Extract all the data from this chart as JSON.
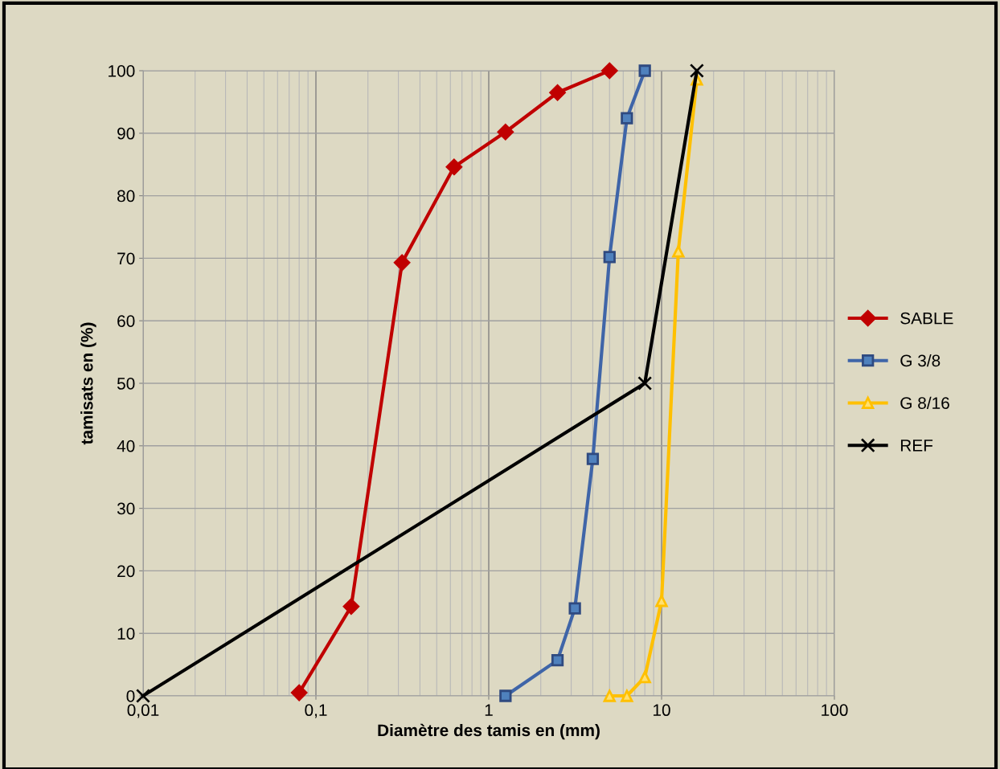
{
  "chart_data": {
    "type": "line",
    "xlabel": "Diamètre des tamis en (mm)",
    "ylabel": "tamisats en (%)",
    "log": "x",
    "xlim": [
      0.01,
      100
    ],
    "xticks": [
      {
        "value": 0.01,
        "label": "0,01"
      },
      {
        "value": 0.1,
        "label": "0,1"
      },
      1,
      10,
      100
    ],
    "ylim": [
      0,
      100
    ],
    "yticks": [
      0,
      10,
      20,
      30,
      40,
      50,
      60,
      70,
      80,
      90,
      100
    ],
    "grid": true,
    "legend": "right",
    "line_style": "solid",
    "series": [
      {
        "name": "SABLE",
        "color": "#c00000",
        "marker": "diamond",
        "x": [
          0.08,
          0.16,
          0.315,
          0.63,
          1.25,
          2.5,
          5
        ],
        "values": [
          0.5,
          14.3,
          69.3,
          84.6,
          90.2,
          96.5,
          100
        ]
      },
      {
        "name": "G 3/8",
        "color": "#3f65a8",
        "marker": "square",
        "x": [
          1.25,
          2.5,
          3.15,
          4,
          5,
          6.3,
          8
        ],
        "values": [
          0,
          5.7,
          14,
          37.9,
          70.2,
          92.4,
          100
        ]
      },
      {
        "name": "G 8/16",
        "color": "#ffc000",
        "marker": "triangle",
        "x": [
          5,
          6.3,
          8,
          10,
          12.5,
          16
        ],
        "values": [
          0,
          0,
          3,
          15.2,
          71.1,
          98.6
        ]
      },
      {
        "name": "REF",
        "color": "#000000",
        "marker": "cross",
        "x": [
          0.01,
          8,
          16
        ],
        "values": [
          0,
          50,
          100
        ]
      }
    ]
  }
}
